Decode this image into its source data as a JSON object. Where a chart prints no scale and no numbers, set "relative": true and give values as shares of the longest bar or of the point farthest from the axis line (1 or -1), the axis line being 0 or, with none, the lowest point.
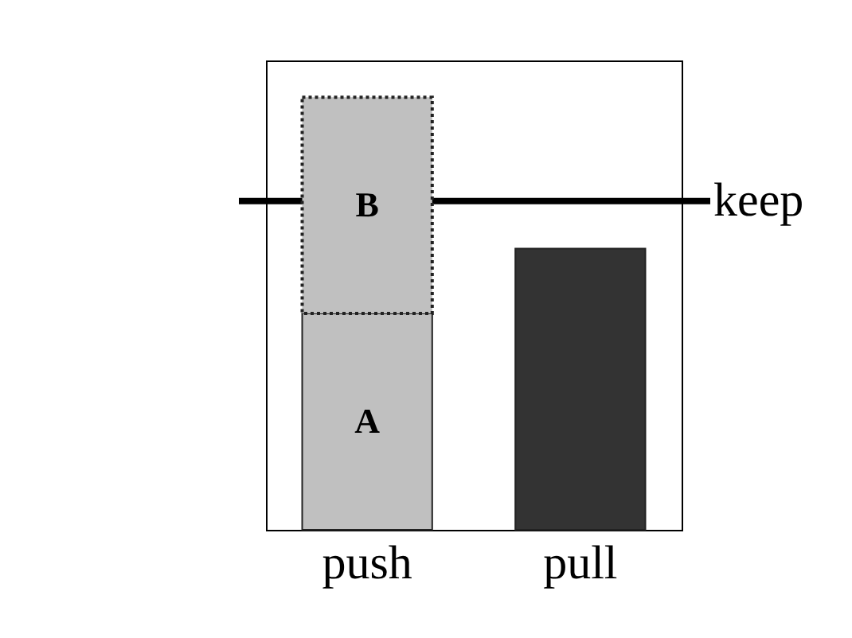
{
  "chart_data": {
    "type": "bar",
    "relative": true,
    "stacked": true,
    "categories": [
      "push",
      "pull"
    ],
    "series": [
      {
        "name": "A",
        "color": "#c0c0c0",
        "values": [
          0.5,
          null
        ]
      },
      {
        "name": "B",
        "color": "#c0c0c0",
        "values": [
          0.5,
          null
        ],
        "line_style": "dotted"
      },
      {
        "color": "#333333",
        "values": [
          null,
          0.65
        ]
      }
    ],
    "ref_lines": [
      {
        "axis": "y",
        "value": 0.76,
        "label": "keep",
        "color": "#000000"
      }
    ]
  }
}
